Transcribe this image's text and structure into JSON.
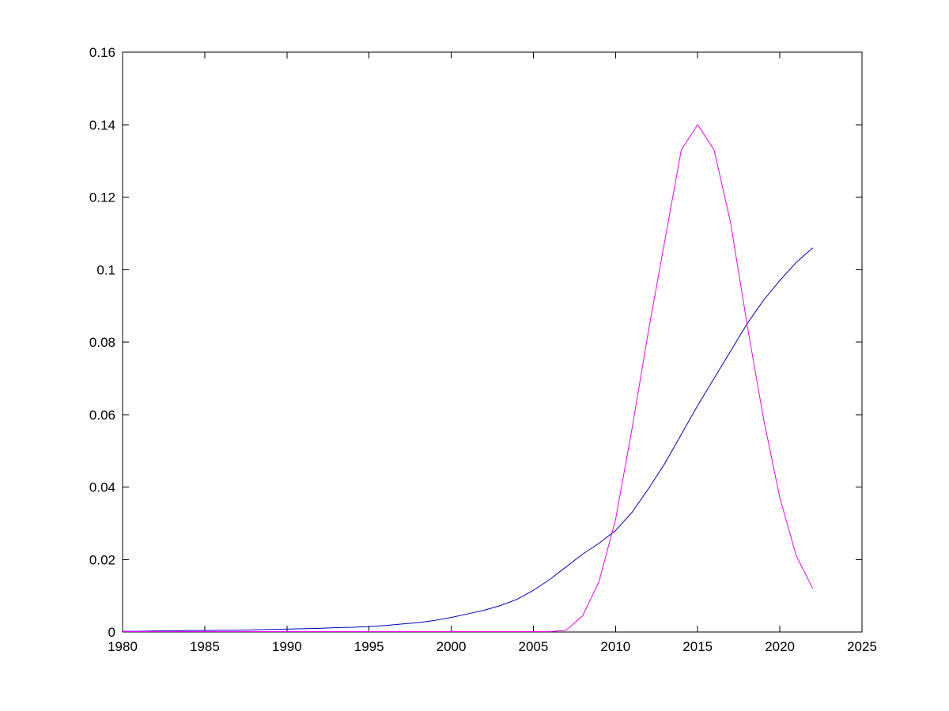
{
  "figure": {
    "background": "#ffffff"
  },
  "chart_data": {
    "type": "line",
    "title": "",
    "xlabel": "",
    "ylabel": "",
    "xlim": [
      1980,
      2025
    ],
    "ylim": [
      0,
      0.16
    ],
    "grid": false,
    "legend": null,
    "axis_color": "#000000",
    "tick_length": 8,
    "xticks": {
      "values": [
        1980,
        1985,
        1990,
        1995,
        2000,
        2005,
        2010,
        2015,
        2020,
        2025
      ],
      "labels": [
        "1980",
        "1985",
        "1990",
        "1995",
        "2000",
        "2005",
        "2010",
        "2015",
        "2020",
        "2025"
      ]
    },
    "yticks": {
      "values": [
        0,
        0.02,
        0.04,
        0.06,
        0.08,
        0.1,
        0.12,
        0.14,
        0.16
      ],
      "labels": [
        "0",
        "0.02",
        "0.04",
        "0.06",
        "0.08",
        "0.1",
        "0.12",
        "0.14",
        "0.16"
      ]
    },
    "x": [
      1980,
      1981,
      1982,
      1983,
      1984,
      1985,
      1986,
      1987,
      1988,
      1989,
      1990,
      1991,
      1992,
      1993,
      1994,
      1995,
      1996,
      1997,
      1998,
      1999,
      2000,
      2001,
      2002,
      2003,
      2004,
      2005,
      2006,
      2007,
      2008,
      2009,
      2010,
      2011,
      2012,
      2013,
      2014,
      2015,
      2016,
      2017,
      2018,
      2019,
      2020,
      2021,
      2022
    ],
    "series": [
      {
        "name": "series-1-blue-cumulative",
        "color": "#0000BB",
        "width": 1,
        "values": [
          0.0002,
          0.0002,
          0.0003,
          0.0003,
          0.0004,
          0.0004,
          0.0005,
          0.0005,
          0.0006,
          0.0007,
          0.0008,
          0.0009,
          0.001,
          0.0012,
          0.0013,
          0.0015,
          0.0018,
          0.0022,
          0.0026,
          0.0032,
          0.004,
          0.005,
          0.006,
          0.0073,
          0.009,
          0.0115,
          0.0145,
          0.018,
          0.0215,
          0.0245,
          0.028,
          0.033,
          0.0395,
          0.0465,
          0.0545,
          0.0625,
          0.07,
          0.0775,
          0.085,
          0.0915,
          0.097,
          0.102,
          0.106
        ]
      },
      {
        "name": "series-2-magenta-peaked",
        "color": "#EE00EE",
        "width": 1,
        "values": [
          0.0001,
          0.0001,
          0.0001,
          0.0001,
          0.0001,
          0.0001,
          0.0001,
          0.0001,
          0.0001,
          0.0001,
          0.0001,
          0.0001,
          0.0001,
          0.0001,
          0.0001,
          0.0001,
          0.0001,
          0.0001,
          0.0001,
          0.0001,
          0.0001,
          0.0001,
          0.0001,
          0.0001,
          0.0001,
          0.0001,
          0.0001,
          0.0005,
          0.0045,
          0.014,
          0.031,
          0.056,
          0.083,
          0.108,
          0.133,
          0.14,
          0.133,
          0.113,
          0.085,
          0.059,
          0.037,
          0.021,
          0.012
        ]
      }
    ]
  }
}
